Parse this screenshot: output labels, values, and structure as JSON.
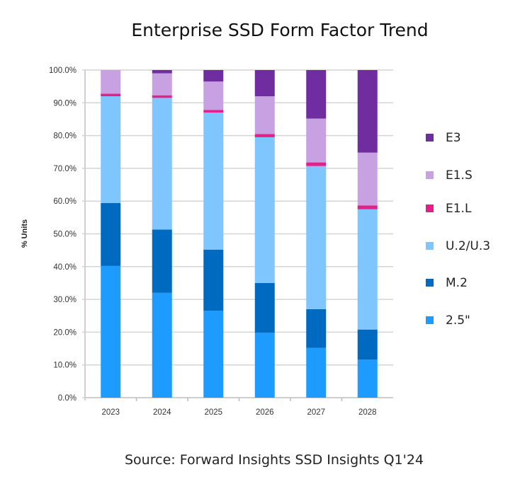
{
  "chart_data": {
    "type": "bar",
    "stacked": true,
    "title": "Enterprise SSD Form Factor Trend",
    "ylabel": "% Units",
    "xlabel": "",
    "ylim": [
      0,
      100
    ],
    "yticks": [
      "0.0%",
      "10.0%",
      "20.0%",
      "30.0%",
      "40.0%",
      "50.0%",
      "60.0%",
      "70.0%",
      "80.0%",
      "90.0%",
      "100.0%"
    ],
    "grid": true,
    "legend_placement": "right",
    "categories": [
      "2023",
      "2024",
      "2025",
      "2026",
      "2027",
      "2028"
    ],
    "series": [
      {
        "name": "2.5\"",
        "color": "#1e9bff",
        "values": [
          40.2,
          32.0,
          26.5,
          19.8,
          15.2,
          11.6
        ]
      },
      {
        "name": "M.2",
        "color": "#006ac0",
        "values": [
          19.2,
          19.3,
          18.7,
          15.2,
          11.8,
          9.2
        ]
      },
      {
        "name": "U.2/U.3",
        "color": "#7fc6ff",
        "values": [
          32.6,
          40.2,
          41.8,
          44.5,
          43.7,
          36.7
        ]
      },
      {
        "name": "E1.L",
        "color": "#e0218a",
        "values": [
          0.8,
          0.8,
          0.8,
          1.0,
          1.1,
          1.2
        ]
      },
      {
        "name": "E1.S",
        "color": "#c7a1e2",
        "values": [
          7.2,
          6.7,
          8.7,
          11.5,
          13.4,
          16.1
        ]
      },
      {
        "name": "E3",
        "color": "#6f2da0",
        "values": [
          0.0,
          1.0,
          3.5,
          8.0,
          14.8,
          25.2
        ]
      }
    ]
  },
  "source": "Source: Forward Insights SSD Insights Q1'24"
}
